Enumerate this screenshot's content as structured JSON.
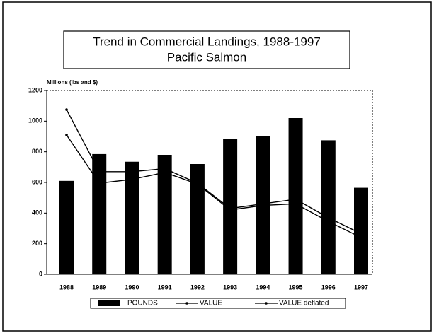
{
  "chart_data": {
    "type": "bar",
    "title": "Trend in Commercial Landings, 1988-1997",
    "subtitle": "Pacific Salmon",
    "y_label": "Millions (lbs and $)",
    "categories": [
      "1988",
      "1989",
      "1990",
      "1991",
      "1992",
      "1993",
      "1994",
      "1995",
      "1996",
      "1997"
    ],
    "series": [
      {
        "name": "POUNDS",
        "type": "bar",
        "color": "#000000",
        "values": [
          610,
          785,
          735,
          780,
          720,
          885,
          900,
          1020,
          875,
          565
        ]
      },
      {
        "name": "VALUE",
        "type": "line",
        "color": "#000000",
        "values": [
          910,
          595,
          620,
          665,
          590,
          420,
          450,
          460,
          345,
          240
        ]
      },
      {
        "name": "VALUE deflated",
        "type": "line",
        "color": "#000000",
        "values": [
          1075,
          670,
          670,
          690,
          595,
          430,
          460,
          490,
          370,
          265
        ]
      }
    ],
    "ylim": [
      0,
      1200
    ],
    "yticks": [
      0,
      200,
      400,
      600,
      800,
      1000,
      1200
    ],
    "grid": false
  }
}
